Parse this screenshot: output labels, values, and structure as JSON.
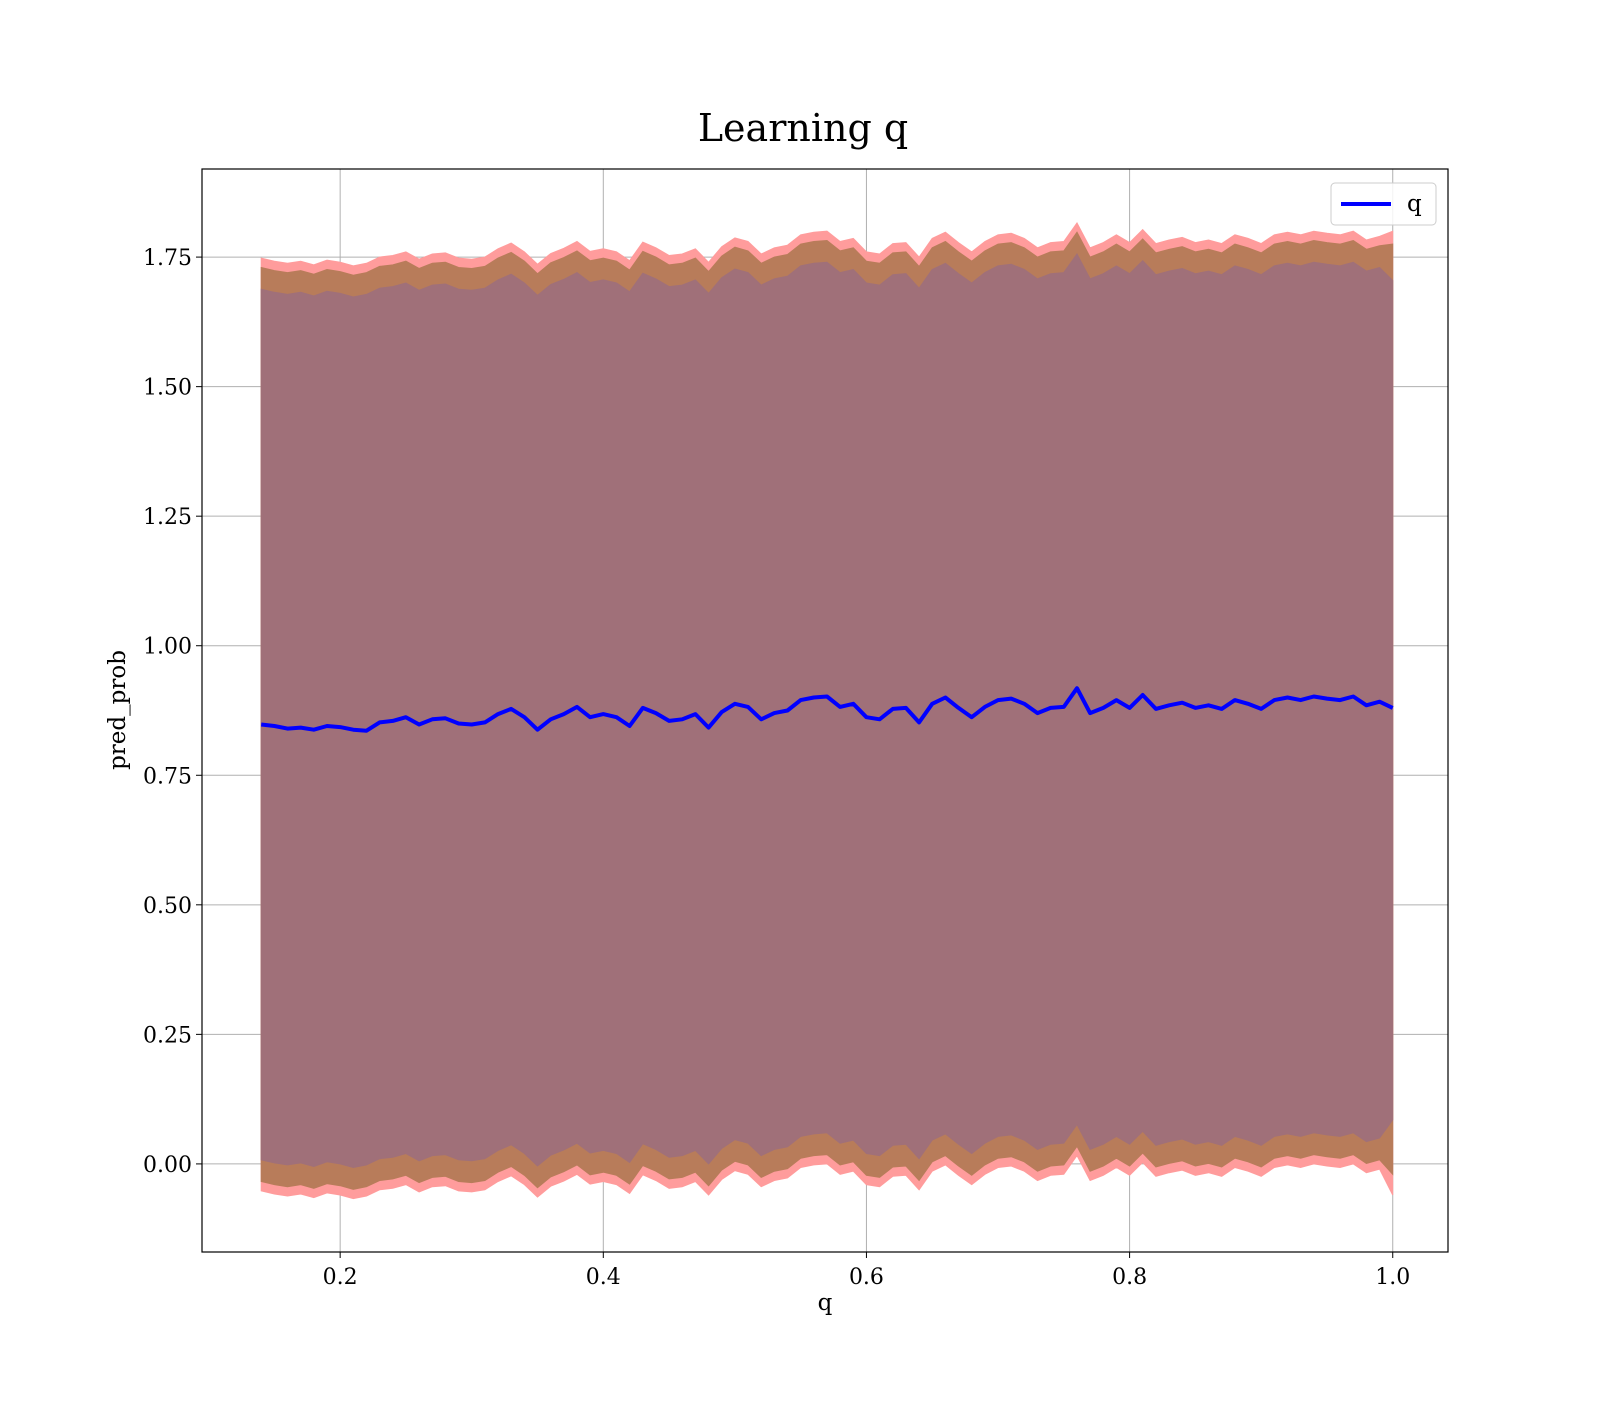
{
  "chart_data": {
    "type": "line",
    "title": "Learning q",
    "xlabel": "q",
    "ylabel": "pred_prob",
    "xlim": [
      0.095,
      1.042
    ],
    "ylim": [
      -0.17,
      1.92
    ],
    "xticks": [
      0.2,
      0.4,
      0.6,
      0.8,
      1.0
    ],
    "xtick_labels": [
      "0.2",
      "0.4",
      "0.6",
      "0.8",
      "1.0"
    ],
    "yticks": [
      0.0,
      0.25,
      0.5,
      0.75,
      1.0,
      1.25,
      1.5,
      1.75
    ],
    "ytick_labels": [
      "0.00",
      "0.25",
      "0.50",
      "0.75",
      "1.00",
      "1.25",
      "1.50",
      "1.75"
    ],
    "grid": true,
    "legend": {
      "placement": "top-right",
      "entries": [
        "q"
      ]
    },
    "series": [
      {
        "name": "q",
        "color": "#0000ff",
        "x": [
          0.14,
          0.15,
          0.16,
          0.17,
          0.18,
          0.19,
          0.2,
          0.21,
          0.22,
          0.23,
          0.24,
          0.25,
          0.26,
          0.27,
          0.28,
          0.29,
          0.3,
          0.31,
          0.32,
          0.33,
          0.34,
          0.35,
          0.36,
          0.37,
          0.38,
          0.39,
          0.4,
          0.41,
          0.42,
          0.43,
          0.44,
          0.45,
          0.46,
          0.47,
          0.48,
          0.49,
          0.5,
          0.51,
          0.52,
          0.53,
          0.54,
          0.55,
          0.56,
          0.57,
          0.58,
          0.59,
          0.6,
          0.61,
          0.62,
          0.63,
          0.64,
          0.65,
          0.66,
          0.67,
          0.68,
          0.69,
          0.7,
          0.71,
          0.72,
          0.73,
          0.74,
          0.75,
          0.76,
          0.77,
          0.78,
          0.79,
          0.8,
          0.81,
          0.82,
          0.83,
          0.84,
          0.85,
          0.86,
          0.87,
          0.88,
          0.89,
          0.9,
          0.91,
          0.92,
          0.93,
          0.94,
          0.95,
          0.96,
          0.97,
          0.98,
          0.99,
          1.0
        ],
        "y": [
          0.848,
          0.845,
          0.84,
          0.842,
          0.838,
          0.845,
          0.843,
          0.838,
          0.836,
          0.852,
          0.855,
          0.862,
          0.848,
          0.858,
          0.86,
          0.85,
          0.848,
          0.852,
          0.868,
          0.878,
          0.862,
          0.838,
          0.858,
          0.868,
          0.882,
          0.862,
          0.868,
          0.862,
          0.845,
          0.88,
          0.87,
          0.855,
          0.858,
          0.868,
          0.842,
          0.872,
          0.888,
          0.882,
          0.858,
          0.87,
          0.875,
          0.895,
          0.9,
          0.902,
          0.882,
          0.888,
          0.862,
          0.858,
          0.878,
          0.88,
          0.852,
          0.888,
          0.9,
          0.88,
          0.862,
          0.882,
          0.895,
          0.898,
          0.888,
          0.87,
          0.88,
          0.882,
          0.918,
          0.87,
          0.88,
          0.895,
          0.88,
          0.905,
          0.878,
          0.885,
          0.89,
          0.88,
          0.885,
          0.878,
          0.895,
          0.888,
          0.878,
          0.895,
          0.9,
          0.895,
          0.902,
          0.898,
          0.895,
          0.902,
          0.885,
          0.892,
          0.88
        ]
      }
    ],
    "bands": [
      {
        "color": "#ff9c9c",
        "upper": [
          1.748,
          1.742,
          1.738,
          1.742,
          1.735,
          1.744,
          1.74,
          1.733,
          1.738,
          1.75,
          1.753,
          1.76,
          1.746,
          1.756,
          1.758,
          1.748,
          1.746,
          1.75,
          1.766,
          1.777,
          1.76,
          1.736,
          1.757,
          1.767,
          1.78,
          1.761,
          1.766,
          1.76,
          1.743,
          1.779,
          1.768,
          1.753,
          1.756,
          1.766,
          1.74,
          1.77,
          1.787,
          1.78,
          1.756,
          1.768,
          1.773,
          1.793,
          1.798,
          1.8,
          1.78,
          1.786,
          1.76,
          1.756,
          1.776,
          1.778,
          1.75,
          1.786,
          1.798,
          1.778,
          1.76,
          1.78,
          1.793,
          1.796,
          1.786,
          1.768,
          1.778,
          1.78,
          1.816,
          1.768,
          1.778,
          1.793,
          1.778,
          1.803,
          1.776,
          1.783,
          1.788,
          1.778,
          1.783,
          1.776,
          1.793,
          1.786,
          1.776,
          1.793,
          1.798,
          1.793,
          1.8,
          1.796,
          1.793,
          1.8,
          1.783,
          1.79,
          1.8
        ],
        "lower": [
          -0.052,
          -0.058,
          -0.062,
          -0.058,
          -0.065,
          -0.056,
          -0.06,
          -0.067,
          -0.062,
          -0.05,
          -0.047,
          -0.04,
          -0.054,
          -0.044,
          -0.042,
          -0.052,
          -0.054,
          -0.05,
          -0.034,
          -0.023,
          -0.04,
          -0.064,
          -0.043,
          -0.033,
          -0.02,
          -0.039,
          -0.034,
          -0.04,
          -0.057,
          -0.021,
          -0.032,
          -0.047,
          -0.044,
          -0.034,
          -0.06,
          -0.03,
          -0.013,
          -0.02,
          -0.044,
          -0.032,
          -0.027,
          -0.007,
          -0.002,
          0.0,
          -0.02,
          -0.014,
          -0.04,
          -0.044,
          -0.024,
          -0.022,
          -0.05,
          -0.014,
          -0.002,
          -0.022,
          -0.04,
          -0.02,
          -0.007,
          -0.004,
          -0.014,
          -0.032,
          -0.022,
          -0.02,
          0.016,
          -0.032,
          -0.022,
          -0.007,
          -0.022,
          0.003,
          -0.024,
          -0.017,
          -0.012,
          -0.022,
          -0.017,
          -0.024,
          -0.007,
          -0.014,
          -0.024,
          -0.007,
          -0.002,
          -0.007,
          0.0,
          -0.004,
          -0.007,
          0.0,
          -0.017,
          -0.01,
          -0.06
        ]
      },
      {
        "color": "#b87c5a",
        "upper": [
          1.73,
          1.724,
          1.72,
          1.724,
          1.717,
          1.726,
          1.722,
          1.715,
          1.72,
          1.732,
          1.735,
          1.742,
          1.728,
          1.738,
          1.74,
          1.73,
          1.728,
          1.732,
          1.748,
          1.759,
          1.742,
          1.718,
          1.739,
          1.749,
          1.762,
          1.743,
          1.748,
          1.742,
          1.725,
          1.761,
          1.75,
          1.735,
          1.738,
          1.748,
          1.722,
          1.752,
          1.769,
          1.762,
          1.738,
          1.75,
          1.755,
          1.775,
          1.78,
          1.782,
          1.762,
          1.768,
          1.742,
          1.738,
          1.758,
          1.76,
          1.732,
          1.768,
          1.78,
          1.76,
          1.742,
          1.762,
          1.775,
          1.778,
          1.768,
          1.75,
          1.76,
          1.762,
          1.798,
          1.75,
          1.76,
          1.775,
          1.76,
          1.785,
          1.758,
          1.765,
          1.77,
          1.76,
          1.765,
          1.758,
          1.775,
          1.768,
          1.758,
          1.775,
          1.78,
          1.775,
          1.782,
          1.778,
          1.775,
          1.782,
          1.765,
          1.772,
          1.775
        ],
        "lower": [
          -0.034,
          -0.04,
          -0.044,
          -0.04,
          -0.047,
          -0.038,
          -0.042,
          -0.049,
          -0.044,
          -0.032,
          -0.029,
          -0.022,
          -0.036,
          -0.026,
          -0.024,
          -0.034,
          -0.036,
          -0.032,
          -0.016,
          -0.005,
          -0.022,
          -0.046,
          -0.025,
          -0.015,
          -0.002,
          -0.021,
          -0.016,
          -0.022,
          -0.039,
          -0.003,
          -0.014,
          -0.029,
          -0.026,
          -0.016,
          -0.042,
          -0.012,
          0.005,
          -0.002,
          -0.026,
          -0.014,
          -0.009,
          0.011,
          0.016,
          0.018,
          -0.002,
          0.004,
          -0.022,
          -0.026,
          -0.006,
          -0.004,
          -0.032,
          0.004,
          0.016,
          -0.004,
          -0.022,
          -0.002,
          0.011,
          0.014,
          0.004,
          -0.014,
          -0.004,
          -0.002,
          0.034,
          -0.014,
          -0.004,
          0.011,
          -0.004,
          0.021,
          -0.006,
          0.001,
          0.006,
          -0.004,
          0.001,
          -0.006,
          0.011,
          0.004,
          -0.006,
          0.011,
          0.016,
          0.011,
          0.018,
          0.014,
          0.011,
          0.018,
          0.001,
          0.008,
          -0.02
        ]
      },
      {
        "color": "#a07079",
        "upper": [
          1.688,
          1.682,
          1.678,
          1.682,
          1.675,
          1.684,
          1.68,
          1.673,
          1.678,
          1.69,
          1.693,
          1.7,
          1.686,
          1.696,
          1.698,
          1.688,
          1.686,
          1.69,
          1.706,
          1.717,
          1.7,
          1.676,
          1.697,
          1.707,
          1.72,
          1.701,
          1.706,
          1.7,
          1.683,
          1.719,
          1.708,
          1.693,
          1.696,
          1.706,
          1.68,
          1.71,
          1.727,
          1.72,
          1.696,
          1.708,
          1.713,
          1.733,
          1.738,
          1.74,
          1.72,
          1.726,
          1.7,
          1.696,
          1.716,
          1.718,
          1.69,
          1.726,
          1.738,
          1.718,
          1.7,
          1.72,
          1.733,
          1.736,
          1.726,
          1.708,
          1.718,
          1.72,
          1.756,
          1.708,
          1.718,
          1.733,
          1.718,
          1.743,
          1.716,
          1.723,
          1.728,
          1.718,
          1.723,
          1.716,
          1.733,
          1.726,
          1.716,
          1.733,
          1.738,
          1.733,
          1.74,
          1.736,
          1.733,
          1.74,
          1.723,
          1.73,
          1.705
        ],
        "lower": [
          0.008,
          0.002,
          -0.002,
          0.002,
          -0.005,
          0.004,
          0.0,
          -0.007,
          -0.002,
          0.01,
          0.013,
          0.02,
          0.006,
          0.016,
          0.018,
          0.008,
          0.006,
          0.01,
          0.026,
          0.037,
          0.02,
          -0.004,
          0.017,
          0.027,
          0.04,
          0.021,
          0.026,
          0.02,
          0.003,
          0.039,
          0.028,
          0.013,
          0.016,
          0.026,
          0.0,
          0.03,
          0.047,
          0.04,
          0.016,
          0.028,
          0.033,
          0.053,
          0.058,
          0.06,
          0.04,
          0.046,
          0.02,
          0.016,
          0.036,
          0.038,
          0.01,
          0.046,
          0.058,
          0.038,
          0.02,
          0.04,
          0.053,
          0.056,
          0.046,
          0.028,
          0.038,
          0.04,
          0.076,
          0.028,
          0.038,
          0.053,
          0.038,
          0.063,
          0.036,
          0.043,
          0.048,
          0.038,
          0.043,
          0.036,
          0.053,
          0.046,
          0.036,
          0.053,
          0.058,
          0.053,
          0.06,
          0.056,
          0.053,
          0.06,
          0.043,
          0.05,
          0.085
        ]
      }
    ]
  }
}
